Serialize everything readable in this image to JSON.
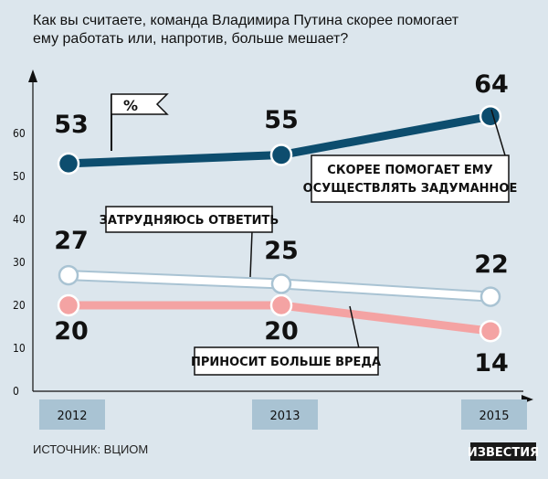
{
  "chart_data": {
    "type": "line",
    "title": "Как вы считаете, команда Владимира Путина скорее помогает ему работать или, напротив, больше мешает?",
    "title_lines": [
      "Как вы считаете, команда Владимира Путина скорее помогает",
      "ему работать или, напротив, больше мешает?"
    ],
    "unit_flag": "%",
    "categories": [
      "2012",
      "2013",
      "2015"
    ],
    "yticks": [
      "0",
      "10",
      "20",
      "30",
      "40",
      "50",
      "60"
    ],
    "ylim": [
      0,
      70
    ],
    "grid": false,
    "series": [
      {
        "name": "СКОРЕЕ ПОМОГАЕТ ЕМУ ОСУЩЕСТВЛЯТЬ ЗАДУМАННОЕ",
        "label_lines": [
          "СКОРЕЕ ПОМОГАЕТ ЕМУ",
          "ОСУЩЕСТВЛЯТЬ ЗАДУМАННОЕ"
        ],
        "values": [
          53,
          55,
          64
        ],
        "color": "#0d4d6e"
      },
      {
        "name": "ЗАТРУДНЯЮСЬ ОТВЕТИТЬ",
        "label_lines": [
          "ЗАТРУДНЯЮСЬ ОТВЕТИТЬ"
        ],
        "values": [
          27,
          25,
          22
        ],
        "color": "#ffffff",
        "outline": "#a9c3d3"
      },
      {
        "name": "ПРИНОСИТ БОЛЬШЕ ВРЕДА",
        "label_lines": [
          "ПРИНОСИТ БОЛЬШЕ ВРЕДА"
        ],
        "values": [
          20,
          20,
          14
        ],
        "color": "#f4a3a3"
      }
    ]
  },
  "source": "ИСТОЧНИК: ВЦИОМ",
  "logo": "ИЗВЕСТИЯ",
  "colors": {
    "background": "#dce6ed",
    "year_box": "#a9c3d3",
    "logo_bg": "#1a1a1a"
  }
}
